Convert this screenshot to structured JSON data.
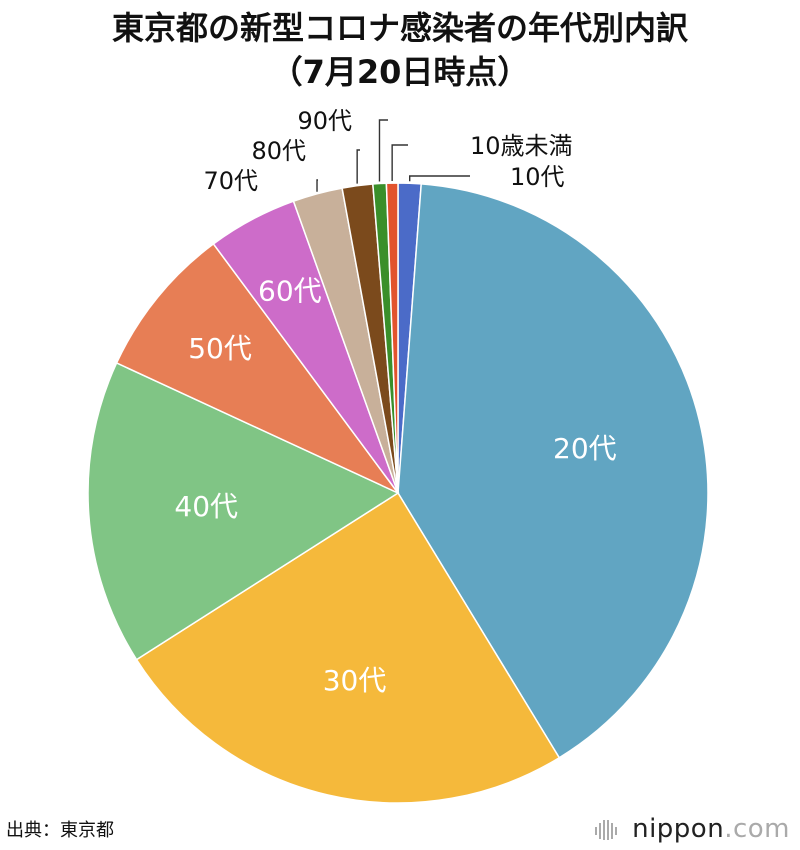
{
  "title": {
    "line1": "東京都の新型コロナ感染者の年代別内訳",
    "line2": "（7月20日時点）"
  },
  "source": "出典：東京都",
  "brand": {
    "name": "nippon",
    "dot": ".",
    "tld": "com"
  },
  "chart_data": {
    "type": "pie",
    "title": "東京都の新型コロナ感染者の年代別内訳（7月20日時点）",
    "start": "top, clockwise",
    "slices": [
      {
        "label": "10代",
        "value": 1.2,
        "color": "#4b6bc8",
        "label_pos": "outside"
      },
      {
        "label": "20代",
        "value": 40.3,
        "color": "#61a5c2",
        "label_pos": "inside"
      },
      {
        "label": "30代",
        "value": 24.8,
        "color": "#f5b93b",
        "label_pos": "inside"
      },
      {
        "label": "40代",
        "value": 16.0,
        "color": "#80c585",
        "label_pos": "inside"
      },
      {
        "label": "50代",
        "value": 8.0,
        "color": "#e77e55",
        "label_pos": "inside"
      },
      {
        "label": "60代",
        "value": 4.7,
        "color": "#cd6cc9",
        "label_pos": "inside"
      },
      {
        "label": "70代",
        "value": 2.6,
        "color": "#c8b09a",
        "label_pos": "outside"
      },
      {
        "label": "80代",
        "value": 1.6,
        "color": "#7b4a1c",
        "label_pos": "outside"
      },
      {
        "label": "90代",
        "value": 0.7,
        "color": "#3a8f2a",
        "label_pos": "outside"
      },
      {
        "label": "10歳未満",
        "value": 0.6,
        "color": "#e2532d",
        "label_pos": "outside"
      }
    ]
  }
}
